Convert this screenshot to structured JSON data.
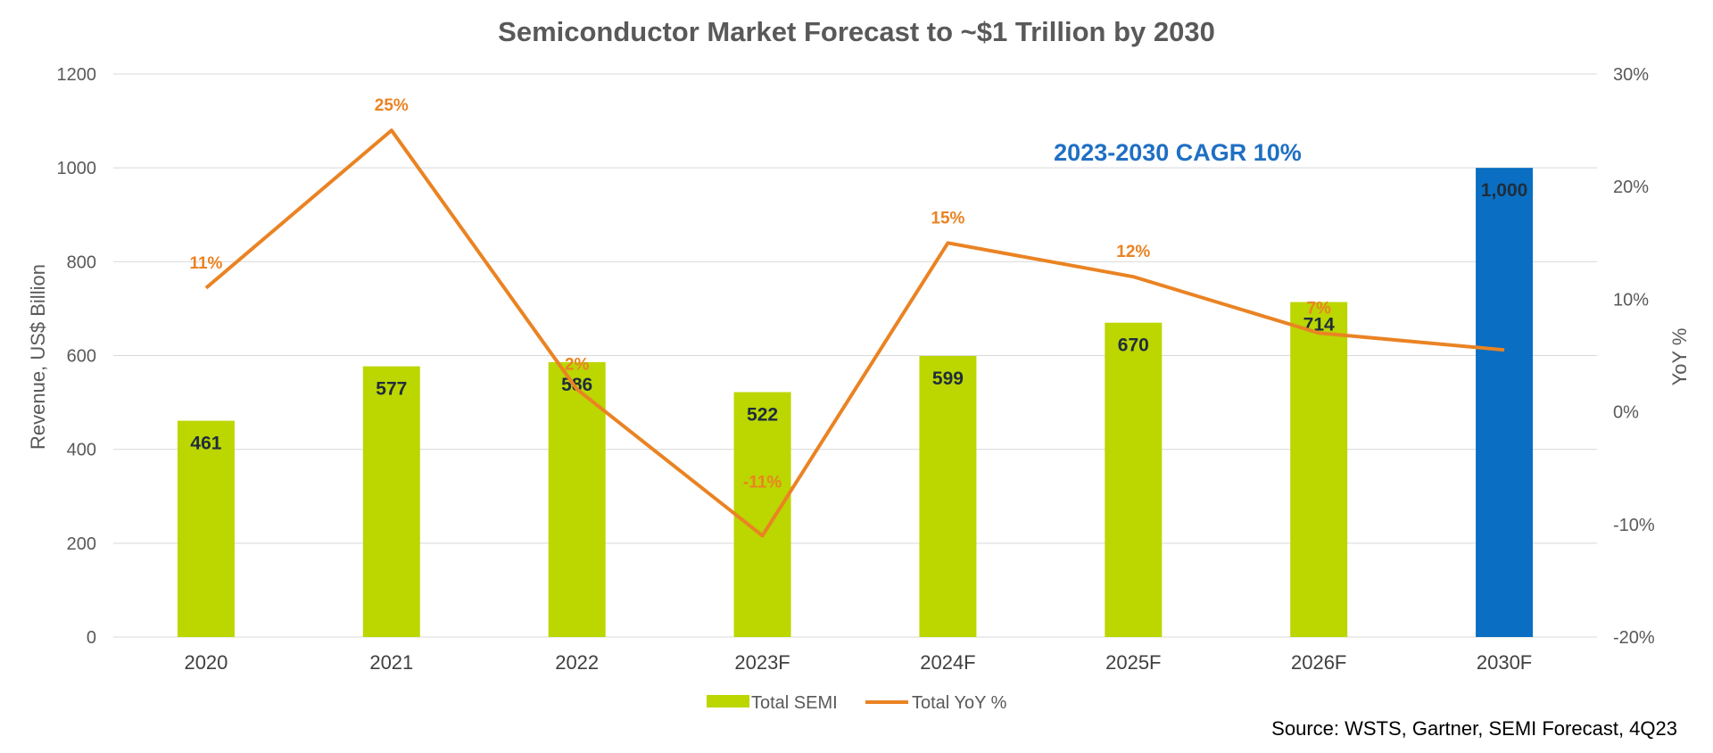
{
  "chart_data": {
    "type": "bar",
    "title": "Semiconductor Market Forecast to ~$1 Trillion by 2030",
    "ylabel": "Revenue, US$ Billion",
    "y2label": "YoY %",
    "ylim": [
      0,
      1200
    ],
    "yticks": [
      "0",
      "200",
      "400",
      "600",
      "800",
      "1000",
      "1200"
    ],
    "y2lim": [
      -20,
      30
    ],
    "y2ticks": [
      "-20%",
      "-10%",
      "0%",
      "10%",
      "20%",
      "30%"
    ],
    "categories": [
      "2020",
      "2021",
      "2022",
      "2023F",
      "2024F",
      "2025F",
      "2026F",
      "2030F"
    ],
    "series": [
      {
        "name": "Total SEMI",
        "type": "bar",
        "axis": "left",
        "values": [
          461,
          577,
          586,
          522,
          599,
          670,
          714,
          1000
        ],
        "labels": [
          "461",
          "577",
          "586",
          "522",
          "599",
          "670",
          "714",
          "1,000"
        ],
        "colors": [
          "#bcd600",
          "#bcd600",
          "#bcd600",
          "#bcd600",
          "#bcd600",
          "#bcd600",
          "#bcd600",
          "#0a6fc2"
        ]
      },
      {
        "name": "Total YoY %",
        "type": "line",
        "axis": "right",
        "values": [
          11,
          25,
          2,
          -11,
          15,
          12,
          7,
          5.5
        ],
        "labels": [
          "11%",
          "25%",
          "2%",
          "-11%",
          "15%",
          "12%",
          "7%",
          ""
        ],
        "color": "#ea8323"
      }
    ],
    "annotation": {
      "text": "2023-2030 CAGR 10%",
      "color": "#1f6fc4"
    },
    "grid": true,
    "legend": "bottom-center",
    "source": "Source: WSTS, Gartner, SEMI Forecast, 4Q23"
  }
}
